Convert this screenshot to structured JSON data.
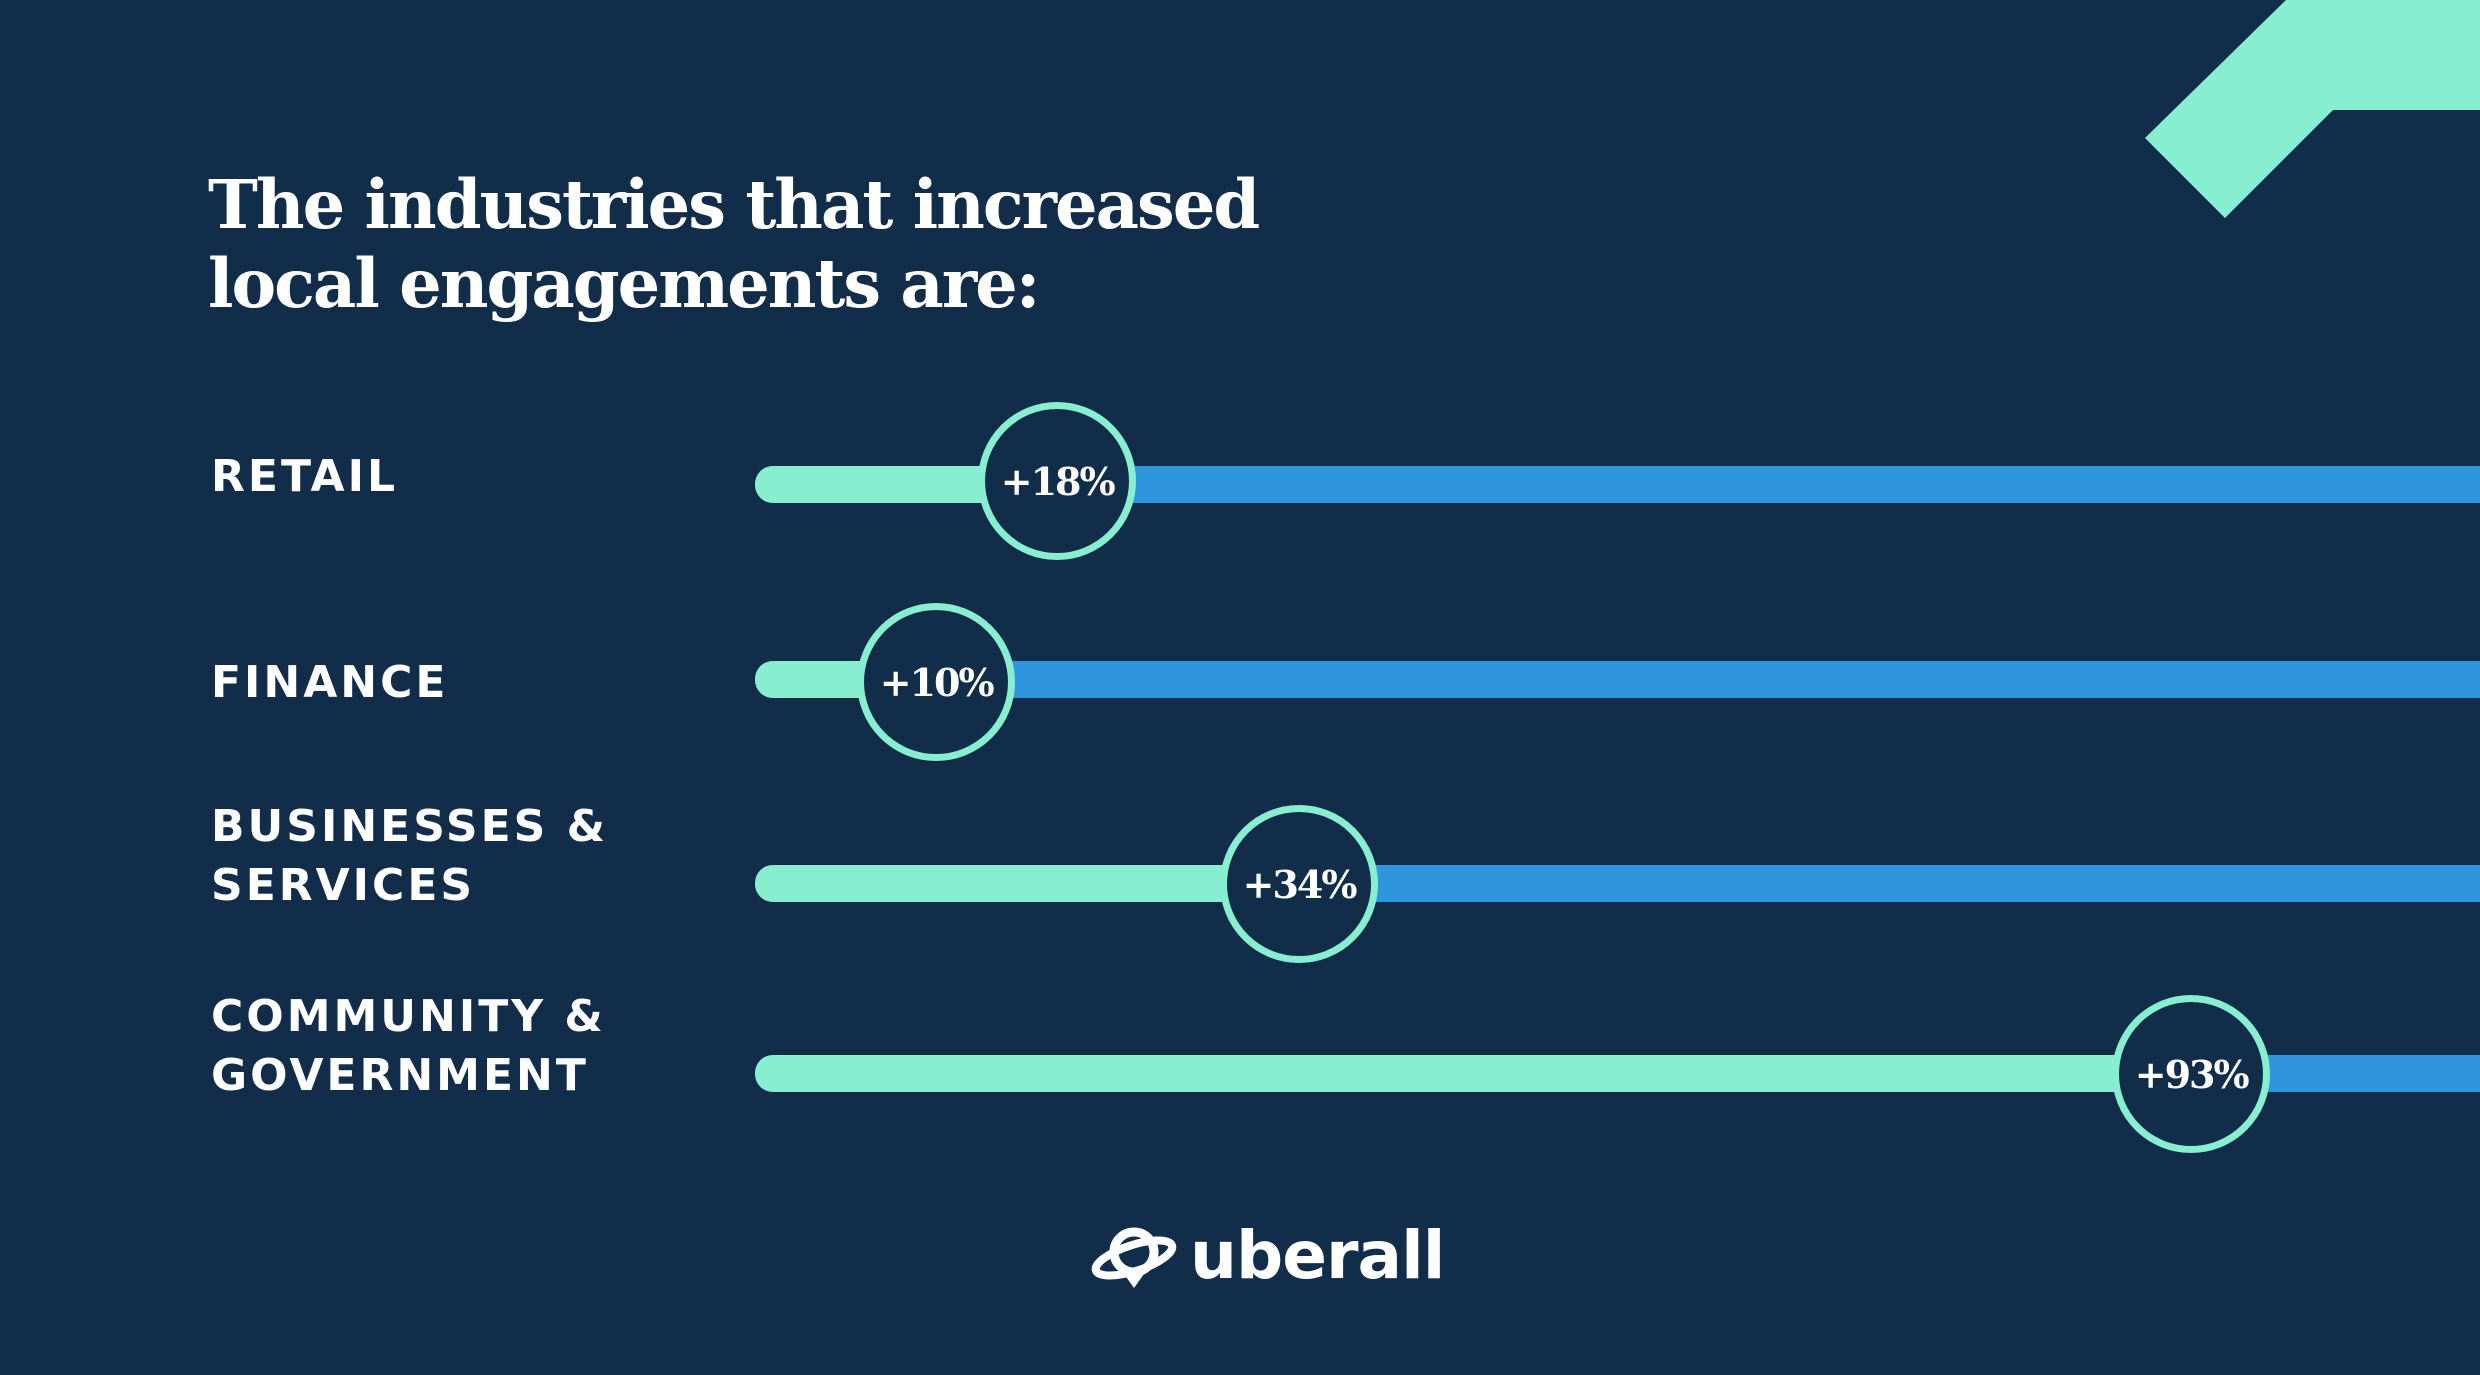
{
  "title": {
    "line1": "The industries that increased",
    "line2": "local engagements are:"
  },
  "chart_data": {
    "type": "bar",
    "orientation": "horizontal",
    "title": "The industries that increased local engagements are:",
    "xlim": [
      0,
      100
    ],
    "categories": [
      "RETAIL",
      "FINANCE",
      "BUSINESSES & SERVICES",
      "COMMUNITY & GOVERNMENT"
    ],
    "values": [
      18,
      10,
      34,
      93
    ],
    "rows": [
      {
        "label_lines": [
          "RETAIL"
        ],
        "value": 18,
        "value_label": "+18%"
      },
      {
        "label_lines": [
          "FINANCE"
        ],
        "value": 10,
        "value_label": "+10%"
      },
      {
        "label_lines": [
          "BUSINESSES &",
          "SERVICES"
        ],
        "value": 34,
        "value_label": "+34%"
      },
      {
        "label_lines": [
          "COMMUNITY &",
          "GOVERNMENT"
        ],
        "value": 93,
        "value_label": "+93%"
      }
    ],
    "colors": {
      "background": "#112d4a",
      "fill": "#87efcf",
      "track": "#2f96de",
      "text": "#ffffff"
    }
  },
  "logo": {
    "text": "uberall",
    "icon": "planet-icon"
  },
  "decoration": {
    "icon": "corner-chevron-icon"
  }
}
